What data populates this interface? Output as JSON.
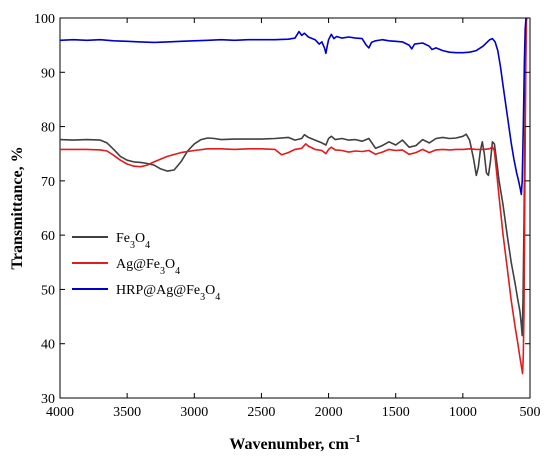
{
  "chart_data": {
    "type": "line",
    "title": "",
    "xlabel_main": "Wavenumber, cm",
    "xlabel_sup": "−1",
    "ylabel": "Transmittance, %",
    "xlim": [
      4000,
      500
    ],
    "ylim": [
      30,
      100
    ],
    "x_reversed": true,
    "grid": false,
    "legend_position": "center-left",
    "x_ticks": [
      4000,
      3500,
      3000,
      2500,
      2000,
      1500,
      1000,
      500
    ],
    "y_ticks": [
      30,
      40,
      50,
      60,
      70,
      80,
      90,
      100
    ],
    "x_tick_labels": [
      "4000",
      "3500",
      "3000",
      "2500",
      "2000",
      "1500",
      "1000",
      "500"
    ],
    "y_tick_labels": [
      "30",
      "40",
      "50",
      "60",
      "70",
      "80",
      "90",
      "100"
    ],
    "series": [
      {
        "name": "Fe3O4",
        "label_parts": [
          [
            "Fe",
            false
          ],
          [
            "3",
            true
          ],
          [
            "O",
            false
          ],
          [
            "4",
            true
          ]
        ],
        "color": "#404040",
        "points": [
          [
            4000,
            77.6
          ],
          [
            3900,
            77.5
          ],
          [
            3800,
            77.6
          ],
          [
            3700,
            77.5
          ],
          [
            3650,
            77.0
          ],
          [
            3600,
            75.8
          ],
          [
            3550,
            74.5
          ],
          [
            3500,
            73.8
          ],
          [
            3450,
            73.5
          ],
          [
            3400,
            73.4
          ],
          [
            3350,
            73.2
          ],
          [
            3300,
            72.9
          ],
          [
            3250,
            72.2
          ],
          [
            3200,
            71.8
          ],
          [
            3150,
            72.0
          ],
          [
            3100,
            73.5
          ],
          [
            3050,
            75.5
          ],
          [
            3000,
            76.8
          ],
          [
            2950,
            77.6
          ],
          [
            2900,
            77.9
          ],
          [
            2850,
            77.8
          ],
          [
            2800,
            77.6
          ],
          [
            2700,
            77.7
          ],
          [
            2600,
            77.7
          ],
          [
            2500,
            77.7
          ],
          [
            2400,
            77.8
          ],
          [
            2300,
            78.0
          ],
          [
            2250,
            77.5
          ],
          [
            2200,
            77.8
          ],
          [
            2180,
            78.5
          ],
          [
            2150,
            78.0
          ],
          [
            2100,
            77.5
          ],
          [
            2050,
            77.0
          ],
          [
            2020,
            76.6
          ],
          [
            2000,
            77.8
          ],
          [
            1980,
            78.2
          ],
          [
            1950,
            77.6
          ],
          [
            1900,
            77.8
          ],
          [
            1850,
            77.5
          ],
          [
            1800,
            77.6
          ],
          [
            1750,
            77.3
          ],
          [
            1700,
            77.8
          ],
          [
            1650,
            76.0
          ],
          [
            1600,
            76.5
          ],
          [
            1550,
            77.2
          ],
          [
            1500,
            76.6
          ],
          [
            1450,
            77.5
          ],
          [
            1400,
            76.2
          ],
          [
            1350,
            76.5
          ],
          [
            1300,
            77.6
          ],
          [
            1250,
            77.0
          ],
          [
            1200,
            77.8
          ],
          [
            1150,
            78.0
          ],
          [
            1100,
            77.8
          ],
          [
            1050,
            77.9
          ],
          [
            1000,
            78.2
          ],
          [
            975,
            78.6
          ],
          [
            950,
            77.5
          ],
          [
            920,
            74.0
          ],
          [
            900,
            71.0
          ],
          [
            885,
            72.5
          ],
          [
            870,
            75.5
          ],
          [
            855,
            77.2
          ],
          [
            840,
            75.0
          ],
          [
            825,
            71.5
          ],
          [
            810,
            71.0
          ],
          [
            795,
            73.5
          ],
          [
            780,
            77.2
          ],
          [
            765,
            76.8
          ],
          [
            750,
            74.0
          ],
          [
            730,
            70.0
          ],
          [
            700,
            65.5
          ],
          [
            670,
            60.0
          ],
          [
            640,
            55.0
          ],
          [
            610,
            51.0
          ],
          [
            590,
            48.0
          ],
          [
            575,
            46.0
          ],
          [
            565,
            43.5
          ],
          [
            558,
            41.5
          ],
          [
            552,
            48.0
          ],
          [
            545,
            62.0
          ],
          [
            538,
            80.0
          ],
          [
            532,
            92.0
          ],
          [
            528,
            99.5
          ],
          [
            524,
            100
          ]
        ]
      },
      {
        "name": "Ag@Fe3O4",
        "label_parts": [
          [
            "Ag@Fe",
            false
          ],
          [
            "3",
            true
          ],
          [
            "O",
            false
          ],
          [
            "4",
            true
          ]
        ],
        "color": "#e41a1c",
        "points": [
          [
            4000,
            75.8
          ],
          [
            3900,
            75.8
          ],
          [
            3800,
            75.8
          ],
          [
            3700,
            75.7
          ],
          [
            3650,
            75.5
          ],
          [
            3600,
            74.7
          ],
          [
            3550,
            73.8
          ],
          [
            3500,
            73.1
          ],
          [
            3450,
            72.7
          ],
          [
            3400,
            72.6
          ],
          [
            3350,
            72.9
          ],
          [
            3300,
            73.5
          ],
          [
            3250,
            74.0
          ],
          [
            3200,
            74.5
          ],
          [
            3100,
            75.2
          ],
          [
            3000,
            75.6
          ],
          [
            2900,
            75.9
          ],
          [
            2800,
            75.9
          ],
          [
            2700,
            75.8
          ],
          [
            2600,
            75.9
          ],
          [
            2500,
            75.9
          ],
          [
            2400,
            75.8
          ],
          [
            2350,
            74.8
          ],
          [
            2300,
            75.2
          ],
          [
            2250,
            75.8
          ],
          [
            2200,
            76.0
          ],
          [
            2170,
            76.8
          ],
          [
            2150,
            76.4
          ],
          [
            2100,
            75.8
          ],
          [
            2050,
            75.6
          ],
          [
            2020,
            75.0
          ],
          [
            2000,
            75.8
          ],
          [
            1980,
            76.2
          ],
          [
            1950,
            75.7
          ],
          [
            1900,
            75.6
          ],
          [
            1850,
            75.3
          ],
          [
            1800,
            75.5
          ],
          [
            1750,
            75.4
          ],
          [
            1700,
            75.6
          ],
          [
            1650,
            74.9
          ],
          [
            1600,
            75.3
          ],
          [
            1550,
            75.8
          ],
          [
            1500,
            75.6
          ],
          [
            1450,
            75.7
          ],
          [
            1400,
            74.9
          ],
          [
            1350,
            75.2
          ],
          [
            1300,
            75.8
          ],
          [
            1250,
            75.2
          ],
          [
            1200,
            75.7
          ],
          [
            1150,
            75.8
          ],
          [
            1100,
            75.7
          ],
          [
            1050,
            75.8
          ],
          [
            1000,
            75.8
          ],
          [
            950,
            75.9
          ],
          [
            900,
            75.8
          ],
          [
            850,
            75.8
          ],
          [
            800,
            75.9
          ],
          [
            780,
            76.3
          ],
          [
            765,
            75.5
          ],
          [
            750,
            72.0
          ],
          [
            730,
            67.0
          ],
          [
            700,
            60.0
          ],
          [
            670,
            54.0
          ],
          [
            640,
            48.0
          ],
          [
            610,
            43.0
          ],
          [
            590,
            40.0
          ],
          [
            575,
            37.5
          ],
          [
            562,
            35.5
          ],
          [
            555,
            34.5
          ],
          [
            550,
            38.0
          ],
          [
            545,
            46.0
          ],
          [
            540,
            62.0
          ],
          [
            534,
            82.0
          ],
          [
            530,
            95.0
          ],
          [
            526,
            100
          ]
        ]
      },
      {
        "name": "HRP@Ag@Fe3O4",
        "label_parts": [
          [
            "HRP@Ag@Fe",
            false
          ],
          [
            "3",
            true
          ],
          [
            "O",
            false
          ],
          [
            "4",
            true
          ]
        ],
        "color": "#0000cc",
        "points": [
          [
            4000,
            95.9
          ],
          [
            3900,
            96.0
          ],
          [
            3800,
            95.9
          ],
          [
            3700,
            96.0
          ],
          [
            3600,
            95.8
          ],
          [
            3500,
            95.7
          ],
          [
            3400,
            95.6
          ],
          [
            3300,
            95.5
          ],
          [
            3200,
            95.6
          ],
          [
            3100,
            95.7
          ],
          [
            3000,
            95.8
          ],
          [
            2900,
            95.9
          ],
          [
            2800,
            96.0
          ],
          [
            2700,
            95.9
          ],
          [
            2600,
            96.0
          ],
          [
            2500,
            96.0
          ],
          [
            2400,
            96.0
          ],
          [
            2300,
            96.1
          ],
          [
            2250,
            96.3
          ],
          [
            2220,
            97.5
          ],
          [
            2200,
            96.8
          ],
          [
            2180,
            97.2
          ],
          [
            2150,
            96.5
          ],
          [
            2100,
            96.0
          ],
          [
            2070,
            95.2
          ],
          [
            2050,
            95.6
          ],
          [
            2030,
            94.5
          ],
          [
            2020,
            93.5
          ],
          [
            2010,
            94.8
          ],
          [
            2000,
            96.0
          ],
          [
            1980,
            97.0
          ],
          [
            1960,
            96.2
          ],
          [
            1940,
            96.6
          ],
          [
            1900,
            96.3
          ],
          [
            1850,
            96.5
          ],
          [
            1800,
            96.3
          ],
          [
            1750,
            96.2
          ],
          [
            1720,
            95.0
          ],
          [
            1700,
            94.5
          ],
          [
            1680,
            95.5
          ],
          [
            1650,
            95.8
          ],
          [
            1600,
            96.0
          ],
          [
            1550,
            95.8
          ],
          [
            1500,
            95.7
          ],
          [
            1450,
            95.6
          ],
          [
            1400,
            95.0
          ],
          [
            1380,
            94.3
          ],
          [
            1360,
            95.2
          ],
          [
            1300,
            95.4
          ],
          [
            1250,
            94.8
          ],
          [
            1230,
            94.2
          ],
          [
            1200,
            94.5
          ],
          [
            1150,
            94.0
          ],
          [
            1100,
            93.7
          ],
          [
            1050,
            93.6
          ],
          [
            1000,
            93.6
          ],
          [
            950,
            93.7
          ],
          [
            900,
            94.0
          ],
          [
            850,
            94.8
          ],
          [
            800,
            96.0
          ],
          [
            780,
            96.2
          ],
          [
            760,
            95.6
          ],
          [
            740,
            94.0
          ],
          [
            720,
            91.0
          ],
          [
            700,
            87.5
          ],
          [
            680,
            84.0
          ],
          [
            660,
            80.5
          ],
          [
            640,
            77.0
          ],
          [
            620,
            74.0
          ],
          [
            600,
            71.5
          ],
          [
            585,
            70.0
          ],
          [
            572,
            68.5
          ],
          [
            565,
            67.5
          ],
          [
            558,
            70.0
          ],
          [
            550,
            80.0
          ],
          [
            542,
            92.0
          ],
          [
            536,
            98.0
          ],
          [
            530,
            100
          ]
        ]
      }
    ]
  }
}
